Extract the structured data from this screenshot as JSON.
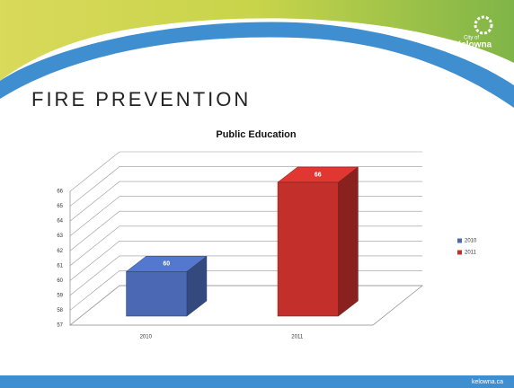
{
  "heading": "FIRE PREVENTION",
  "logo": {
    "small": "City of",
    "name": "Kelowna"
  },
  "footer": "kelowna.ca",
  "chart_data": {
    "type": "bar3d",
    "title": "Public Education",
    "categories": [
      "2010",
      "2011"
    ],
    "series": [
      {
        "name": "2010",
        "color": "#4a68b4",
        "values": [
          60,
          null
        ]
      },
      {
        "name": "2011",
        "color": "#c3302c",
        "values": [
          null,
          66
        ]
      }
    ],
    "ylim": [
      57,
      66
    ],
    "yticks": [
      57,
      58,
      59,
      60,
      61,
      62,
      63,
      64,
      65,
      66
    ],
    "grid": true,
    "legend": "right"
  }
}
